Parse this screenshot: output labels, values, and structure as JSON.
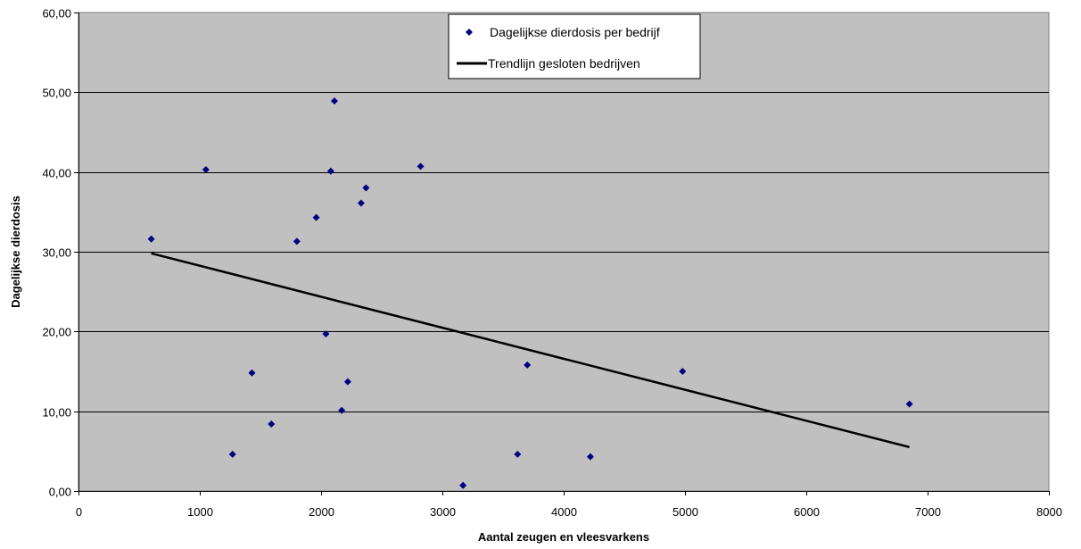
{
  "chart_data": {
    "type": "scatter",
    "xlabel": "Aantal zeugen en vleesvarkens",
    "ylabel": "Dagelijkse dierdosis",
    "xlim": [
      0,
      8000
    ],
    "ylim": [
      0,
      60
    ],
    "x_ticks": [
      "0",
      "1000",
      "2000",
      "3000",
      "4000",
      "5000",
      "6000",
      "7000",
      "8000"
    ],
    "y_ticks": [
      "0,00",
      "10,00",
      "20,00",
      "30,00",
      "40,00",
      "50,00",
      "60,00"
    ],
    "grid": "horizontal",
    "plot_background": "#c0c0c0",
    "legend_position": "top-center",
    "series": [
      {
        "name": "Dagelijkse dierdosis per bedrijf",
        "marker": "diamond",
        "color": "#000080",
        "points": [
          [
            600,
            31.6
          ],
          [
            1050,
            40.3
          ],
          [
            1270,
            4.6
          ],
          [
            1430,
            14.8
          ],
          [
            1590,
            8.4
          ],
          [
            1800,
            31.3
          ],
          [
            1960,
            34.3
          ],
          [
            2040,
            19.7
          ],
          [
            2080,
            40.1
          ],
          [
            2110,
            48.9
          ],
          [
            2170,
            10.1
          ],
          [
            2220,
            13.7
          ],
          [
            2330,
            36.1
          ],
          [
            2370,
            38.0
          ],
          [
            2820,
            40.7
          ],
          [
            3170,
            0.7
          ],
          [
            3620,
            4.6
          ],
          [
            3700,
            15.8
          ],
          [
            4220,
            4.3
          ],
          [
            4980,
            15.0
          ],
          [
            6850,
            10.9
          ]
        ]
      },
      {
        "name": "Trendlijn gesloten bedrijven",
        "style": "line",
        "color": "#000000",
        "points": [
          [
            600,
            29.8
          ],
          [
            6850,
            5.5
          ]
        ]
      }
    ]
  }
}
